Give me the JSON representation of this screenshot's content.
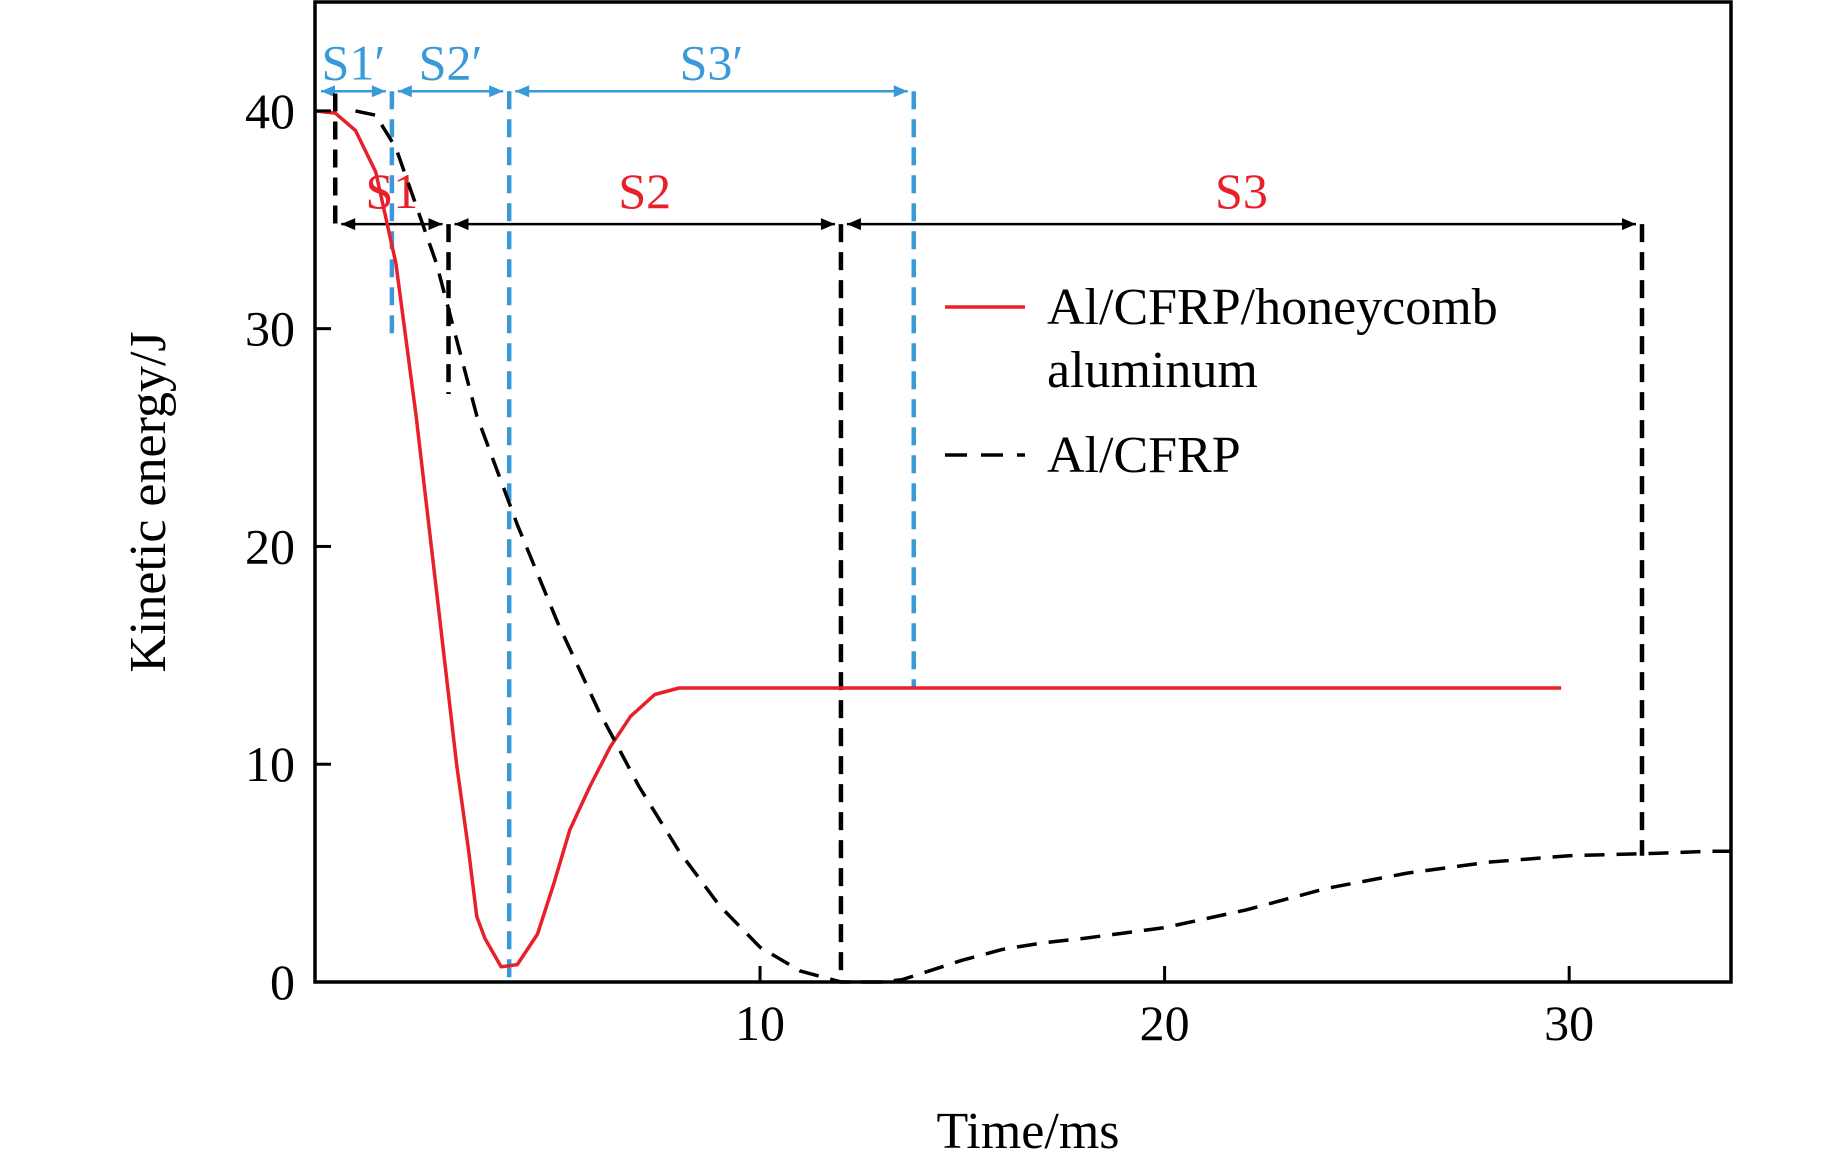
{
  "chart_data": {
    "type": "line",
    "title": "",
    "xlabel": "Time/ms",
    "ylabel": "Kinetic energy/J",
    "xlim": [
      -1,
      34
    ],
    "ylim": [
      0,
      45
    ],
    "xticks": [
      10,
      20,
      30
    ],
    "xtick_labels": [
      "10",
      "20",
      "30"
    ],
    "yticks": [
      0,
      10,
      20,
      30,
      40
    ],
    "ytick_labels": [
      "0",
      "10",
      "20",
      "30",
      "40"
    ],
    "grid": false,
    "legend_position": "right",
    "colors": {
      "honeycomb": "#e8202a",
      "alcfrp": "#000000",
      "stage_honeycomb": "#000000",
      "stage_alcfrp": "#3a9ad9"
    },
    "series": [
      {
        "name": "Al/CFRP/honeycomb aluminum",
        "style": "solid",
        "color": "#e8202a",
        "x": [
          -1,
          -0.5,
          0,
          0.5,
          1.0,
          1.5,
          2.0,
          2.5,
          2.8,
          3.0,
          3.2,
          3.6,
          4.0,
          4.5,
          4.9,
          5.3,
          5.8,
          6.3,
          6.8,
          7.4,
          8.0,
          8.5,
          8.8,
          9.0,
          12,
          15,
          20,
          25,
          29.8
        ],
        "y": [
          40.0,
          39.9,
          39.1,
          37.2,
          33.0,
          26.0,
          18.0,
          10.0,
          6.0,
          3.0,
          2.0,
          0.7,
          0.8,
          2.2,
          4.5,
          7.0,
          9.0,
          10.8,
          12.2,
          13.2,
          13.5,
          13.5,
          13.5,
          13.5,
          13.5,
          13.5,
          13.5,
          13.5,
          13.5
        ]
      },
      {
        "name": "Al/CFRP",
        "style": "dashed",
        "color": "#000000",
        "x": [
          0,
          0.5,
          1,
          2.0,
          3.0,
          4.0,
          5.0,
          6.0,
          7.0,
          8.0,
          9.0,
          10.0,
          11.0,
          12.0,
          13.0,
          13.5,
          14.0,
          15.0,
          16.0,
          17.0,
          18.0,
          20.0,
          22.0,
          24.0,
          26.0,
          28.0,
          30.0,
          32.0,
          33.5,
          34.0
        ],
        "y": [
          40.0,
          39.8,
          38.3,
          33.0,
          26.0,
          21.0,
          16.5,
          12.5,
          9.0,
          6.0,
          3.5,
          1.6,
          0.5,
          0.0,
          0.0,
          0.1,
          0.4,
          1.0,
          1.5,
          1.8,
          2.0,
          2.5,
          3.3,
          4.3,
          5.0,
          5.5,
          5.8,
          5.9,
          6.0,
          6.0
        ]
      }
    ],
    "stages_alcfrp": {
      "labels": [
        "S1",
        "S2",
        "S3"
      ],
      "color": "#e8202a",
      "arrow_y": 34.8,
      "boundaries": [
        -0.5,
        2.3,
        12.0,
        31.8
      ],
      "line_bottoms": [
        34.8,
        27.0,
        0,
        5.8
      ]
    },
    "stages_honeycomb": {
      "labels": [
        "S1′",
        "S2′",
        "S3′"
      ],
      "color": "#3a9ad9",
      "arrow_y": 40.9,
      "boundaries": [
        -1.0,
        0.9,
        3.8,
        13.8
      ],
      "line_bottoms": [
        40.0,
        29.5,
        0,
        13.5
      ]
    },
    "legend": [
      {
        "label_line1": "Al/CFRP/honeycomb",
        "label_line2": "aluminum",
        "style": "solid",
        "color": "#e8202a"
      },
      {
        "label_line1": "Al/CFRP",
        "label_line2": "",
        "style": "dashed",
        "color": "#000000"
      }
    ]
  }
}
